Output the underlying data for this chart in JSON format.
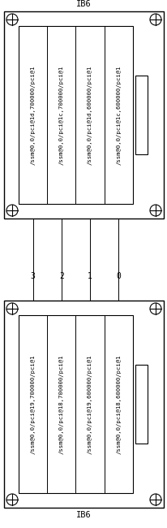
{
  "title_top": "IB6",
  "title_bottom": "IB6",
  "slots_top": [
    "/ssm@0,0/pci@1d,700000/pci@1",
    "/ssm@0,0/pci@1c,700000/pci@1",
    "/ssm@0,0/pci@1d,600000/pci@1",
    "/ssm@0,0/pci@1c,600000/pci@1"
  ],
  "slots_bottom": [
    "/ssm@0,0/pci@19,700000/pci@1",
    "/ssm@0,0/pci@18,700000/pci@1",
    "/ssm@0,0/pci@19,600000/pci@1",
    "/ssm@0,0/pci@18,600000/pci@1"
  ],
  "slot_numbers": [
    "3",
    "2",
    "1",
    "0"
  ],
  "bg_color": "#ffffff",
  "box_color": "#000000",
  "text_color": "#000000",
  "font_size": 5.2,
  "title_font_size": 7.5,
  "label_font_size": 7.0
}
